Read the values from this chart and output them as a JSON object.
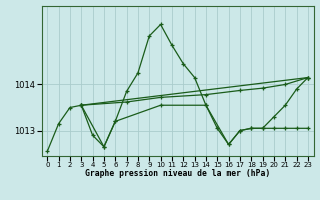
{
  "background_color": "#cce8e8",
  "grid_color": "#aacccc",
  "line_color": "#1a5c1a",
  "xlim": [
    -0.5,
    23.5
  ],
  "ylim": [
    1012.45,
    1015.7
  ],
  "yticks": [
    1013,
    1014
  ],
  "ytick_labels": [
    "1013",
    "1014"
  ],
  "xticks": [
    0,
    1,
    2,
    3,
    4,
    5,
    6,
    7,
    8,
    9,
    10,
    11,
    12,
    13,
    14,
    15,
    16,
    17,
    18,
    19,
    20,
    21,
    22,
    23
  ],
  "xlabel": "Graphe pression niveau de la mer (hPa)",
  "series0": {
    "x": [
      0,
      1,
      2,
      3,
      4,
      5,
      6,
      7,
      8,
      9,
      10,
      11,
      12,
      13,
      14,
      15,
      16,
      17,
      18,
      19,
      20,
      21,
      22,
      23
    ],
    "y": [
      1012.55,
      1013.15,
      1013.5,
      1013.55,
      1012.9,
      1012.65,
      1013.2,
      1013.85,
      1014.25,
      1015.05,
      1015.3,
      1014.85,
      1014.45,
      1014.15,
      1013.55,
      1013.05,
      1012.7,
      1013.0,
      1013.05,
      1013.05,
      1013.3,
      1013.55,
      1013.9,
      1014.15
    ]
  },
  "series1": {
    "x": [
      3,
      23
    ],
    "y": [
      1013.55,
      1014.15
    ]
  },
  "series2": {
    "x": [
      3,
      7,
      10,
      14,
      17,
      19,
      21,
      23
    ],
    "y": [
      1013.55,
      1013.62,
      1013.72,
      1013.78,
      1013.87,
      1013.92,
      1014.0,
      1014.15
    ]
  },
  "series3": {
    "x": [
      3,
      5,
      6,
      10,
      14,
      16,
      17,
      18,
      19,
      20,
      21,
      22,
      23
    ],
    "y": [
      1013.55,
      1012.65,
      1013.2,
      1013.55,
      1013.55,
      1012.7,
      1013.0,
      1013.05,
      1013.05,
      1013.05,
      1013.05,
      1013.05,
      1013.05
    ]
  }
}
